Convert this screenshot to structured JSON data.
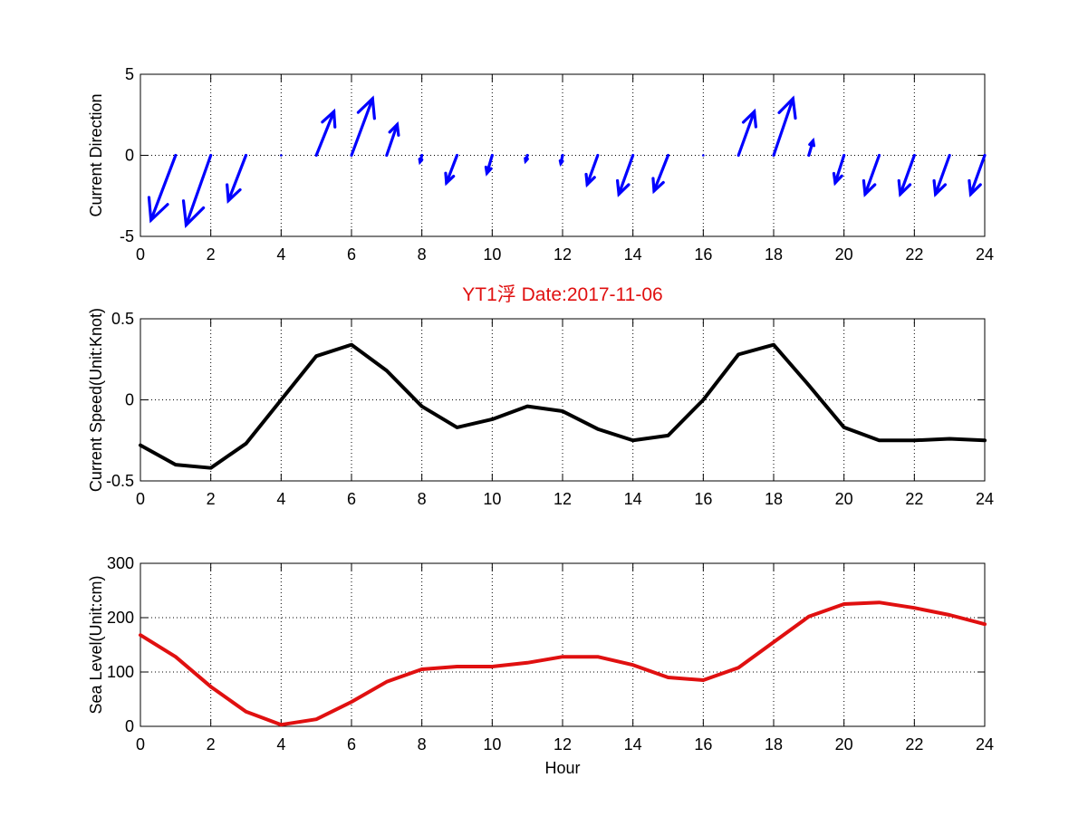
{
  "figure": {
    "title": "YT1浮    Date:2017-11-06",
    "title_color": "#e01010",
    "xlabel": "Hour"
  },
  "chart_data": [
    {
      "type": "quiver",
      "ylabel": "Current Direction",
      "xlim": [
        0,
        24
      ],
      "ylim": [
        -5,
        5
      ],
      "xticks": [
        0,
        2,
        4,
        6,
        8,
        10,
        12,
        14,
        16,
        18,
        20,
        22,
        24
      ],
      "yticks": [
        -5,
        0,
        5
      ],
      "grid": true,
      "color": "#0000ff",
      "arrows": [
        {
          "x": 1,
          "dx": -0.7,
          "dy": -4.0
        },
        {
          "x": 2,
          "dx": -0.7,
          "dy": -4.3
        },
        {
          "x": 3,
          "dx": -0.5,
          "dy": -2.8
        },
        {
          "x": 4,
          "dx": 0.0,
          "dy": 0.0
        },
        {
          "x": 5,
          "dx": 0.5,
          "dy": 2.7
        },
        {
          "x": 6,
          "dx": 0.6,
          "dy": 3.5
        },
        {
          "x": 7,
          "dx": 0.3,
          "dy": 1.9
        },
        {
          "x": 8,
          "dx": -0.05,
          "dy": -0.4
        },
        {
          "x": 9,
          "dx": -0.3,
          "dy": -1.7
        },
        {
          "x": 10,
          "dx": -0.15,
          "dy": -1.1
        },
        {
          "x": 11,
          "dx": -0.05,
          "dy": -0.35
        },
        {
          "x": 12,
          "dx": -0.05,
          "dy": -0.5
        },
        {
          "x": 13,
          "dx": -0.3,
          "dy": -1.8
        },
        {
          "x": 14,
          "dx": -0.4,
          "dy": -2.4
        },
        {
          "x": 15,
          "dx": -0.4,
          "dy": -2.2
        },
        {
          "x": 16,
          "dx": 0.0,
          "dy": 0.0
        },
        {
          "x": 17,
          "dx": 0.45,
          "dy": 2.7
        },
        {
          "x": 18,
          "dx": 0.55,
          "dy": 3.5
        },
        {
          "x": 19,
          "dx": 0.12,
          "dy": 0.9
        },
        {
          "x": 20,
          "dx": -0.25,
          "dy": -1.7
        },
        {
          "x": 21,
          "dx": -0.4,
          "dy": -2.4
        },
        {
          "x": 22,
          "dx": -0.4,
          "dy": -2.4
        },
        {
          "x": 23,
          "dx": -0.4,
          "dy": -2.4
        },
        {
          "x": 24,
          "dx": -0.4,
          "dy": -2.4
        }
      ]
    },
    {
      "type": "line",
      "ylabel": "Current Speed(Unit:Knot)",
      "xlim": [
        0,
        24
      ],
      "ylim": [
        -0.5,
        0.5
      ],
      "xticks": [
        0,
        2,
        4,
        6,
        8,
        10,
        12,
        14,
        16,
        18,
        20,
        22,
        24
      ],
      "yticks": [
        -0.5,
        0,
        0.5
      ],
      "ytick_labels": [
        "-0.5",
        "0",
        "0.5"
      ],
      "grid": true,
      "color": "#000000",
      "x": [
        0,
        1,
        2,
        3,
        4,
        5,
        6,
        7,
        8,
        9,
        10,
        11,
        12,
        13,
        14,
        15,
        16,
        17,
        18,
        19,
        20,
        21,
        22,
        23,
        24
      ],
      "y": [
        -0.28,
        -0.4,
        -0.42,
        -0.27,
        0.0,
        0.27,
        0.34,
        0.18,
        -0.04,
        -0.17,
        -0.12,
        -0.04,
        -0.07,
        -0.18,
        -0.25,
        -0.22,
        0.0,
        0.28,
        0.34,
        0.09,
        -0.17,
        -0.25,
        -0.25,
        -0.24,
        -0.25
      ]
    },
    {
      "type": "line",
      "ylabel": "Sea Level(Unit:cm)",
      "xlim": [
        0,
        24
      ],
      "ylim": [
        0,
        300
      ],
      "xticks": [
        0,
        2,
        4,
        6,
        8,
        10,
        12,
        14,
        16,
        18,
        20,
        22,
        24
      ],
      "yticks": [
        0,
        100,
        200,
        300
      ],
      "grid": true,
      "color": "#e01010",
      "x": [
        0,
        1,
        2,
        3,
        4,
        5,
        6,
        7,
        8,
        9,
        10,
        11,
        12,
        13,
        14,
        15,
        16,
        17,
        18,
        19,
        20,
        21,
        22,
        23,
        24
      ],
      "y": [
        168,
        128,
        73,
        27,
        3,
        13,
        45,
        82,
        105,
        110,
        110,
        117,
        128,
        128,
        113,
        90,
        85,
        108,
        155,
        202,
        225,
        228,
        218,
        205,
        188
      ]
    }
  ]
}
